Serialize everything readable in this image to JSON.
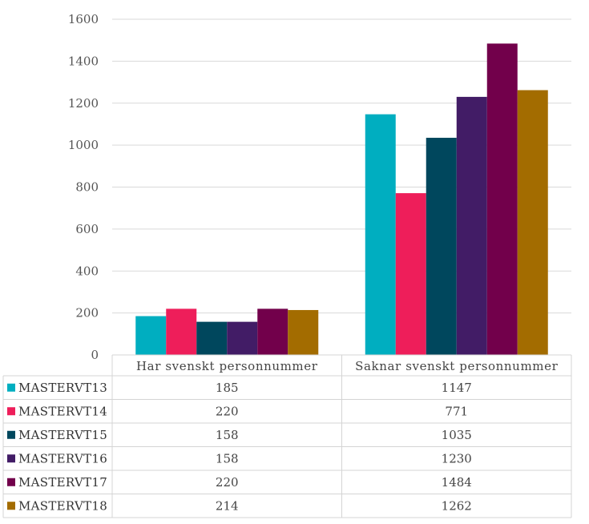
{
  "chart_data": {
    "type": "bar",
    "title": "",
    "xlabel": "",
    "ylabel": "",
    "ylim": [
      0,
      1600
    ],
    "yticks": [
      0,
      200,
      400,
      600,
      800,
      1000,
      1200,
      1400,
      1600
    ],
    "grid": true,
    "legend": "data-table-left",
    "categories": [
      "Har svenskt personnummer",
      "Saknar svenskt personnummer"
    ],
    "series": [
      {
        "name": "MASTERVT13",
        "color": "#00AEC0",
        "values": [
          185,
          1147
        ]
      },
      {
        "name": "MASTERVT14",
        "color": "#EE1E5A",
        "values": [
          220,
          771
        ]
      },
      {
        "name": "MASTERVT15",
        "color": "#00475D",
        "values": [
          158,
          1035
        ]
      },
      {
        "name": "MASTERVT16",
        "color": "#421C66",
        "values": [
          158,
          1230
        ]
      },
      {
        "name": "MASTERVT17",
        "color": "#72004B",
        "values": [
          220,
          1484
        ]
      },
      {
        "name": "MASTERVT18",
        "color": "#A36C00",
        "values": [
          214,
          1262
        ]
      }
    ]
  }
}
